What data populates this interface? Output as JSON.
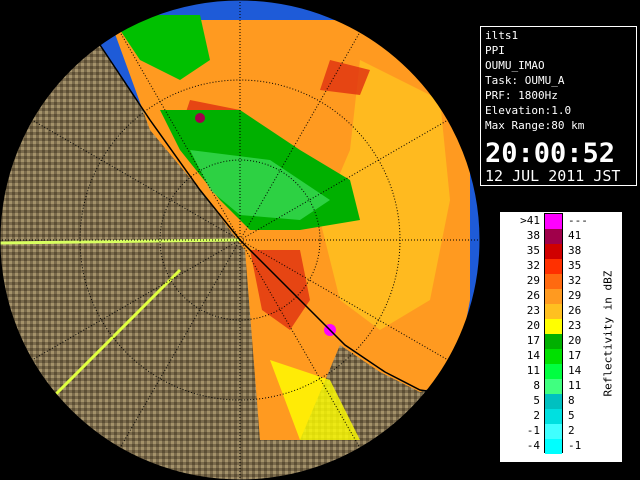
{
  "info": {
    "lines": [
      "ilts1",
      "PPI",
      "OUMU_IMAO",
      "Task: OUMU_A",
      "PRF: 1800Hz",
      "Elevation:1.0",
      "Max Range:80 km"
    ],
    "time": "20:00:52",
    "date": "12 JUL 2011 JST"
  },
  "legend": {
    "unit": "Reflectivity in dBZ",
    "bands": [
      {
        "lower": ">41",
        "upper": "---",
        "color": "#ff00ff"
      },
      {
        "lower": "38",
        "upper": "41",
        "color": "#a0004a"
      },
      {
        "lower": "35",
        "upper": "38",
        "color": "#d00000"
      },
      {
        "lower": "32",
        "upper": "35",
        "color": "#ff3000"
      },
      {
        "lower": "29",
        "upper": "32",
        "color": "#ff6a10"
      },
      {
        "lower": "26",
        "upper": "29",
        "color": "#ff9a20"
      },
      {
        "lower": "23",
        "upper": "26",
        "color": "#ffc020"
      },
      {
        "lower": "20",
        "upper": "23",
        "color": "#ffff00"
      },
      {
        "lower": "17",
        "upper": "20",
        "color": "#00b000"
      },
      {
        "lower": "14",
        "upper": "17",
        "color": "#00e000"
      },
      {
        "lower": "11",
        "upper": "14",
        "color": "#00ff40"
      },
      {
        "lower": "8",
        "upper": "11",
        "color": "#40ff80"
      },
      {
        "lower": "5",
        "upper": "8",
        "color": "#00c0c0"
      },
      {
        "lower": "2",
        "upper": "5",
        "color": "#00e0e0"
      },
      {
        "lower": "-1",
        "upper": "2",
        "color": "#40ffff"
      },
      {
        "lower": "-4",
        "upper": "-1",
        "color": "#00ffff"
      }
    ]
  },
  "colors": {
    "ocean": "#1e5bd8",
    "land": "#7a6a4c",
    "outside": "#000000"
  }
}
